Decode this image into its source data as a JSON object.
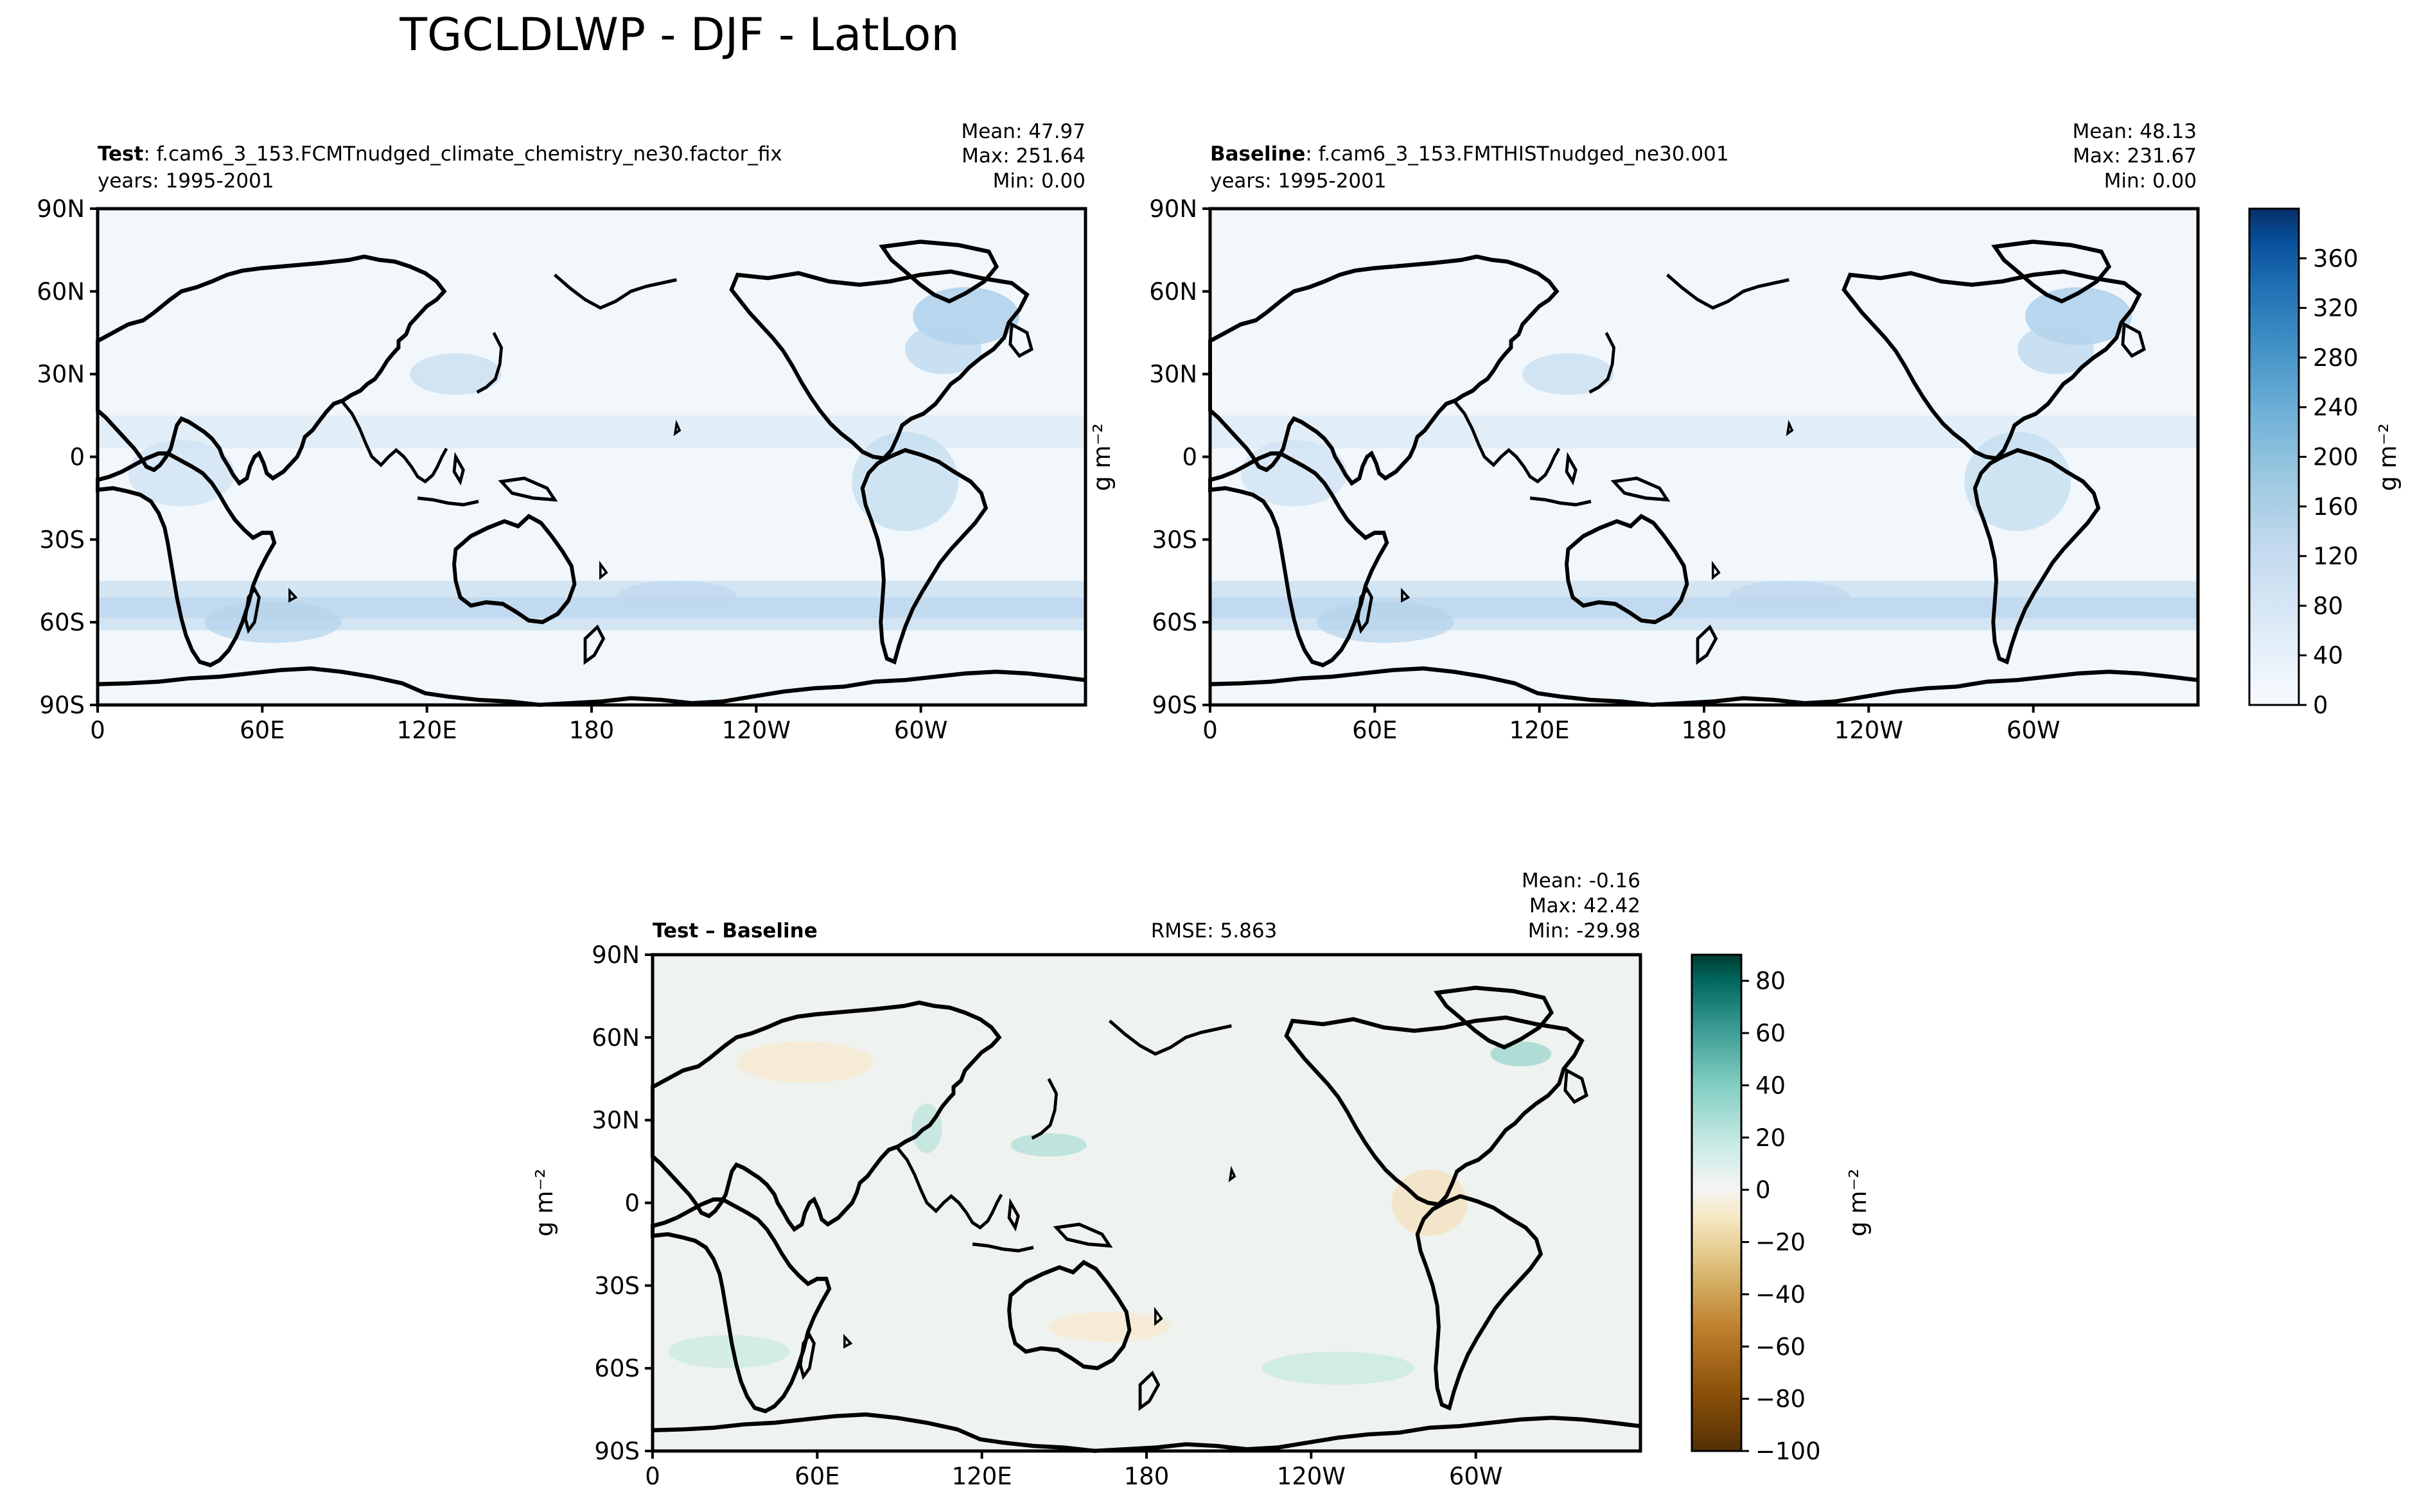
{
  "title": "TGCLDLWP - DJF - LatLon",
  "panels": {
    "test": {
      "name_bold": "Test",
      "name_rest": ": f.cam6_3_153.FCMTnudged_climate_chemistry_ne30.factor_fix",
      "years": "years: 1995-2001",
      "stats": [
        "Mean: 47.97",
        "Max: 251.64",
        "Min:  0.00"
      ]
    },
    "baseline": {
      "name_bold": "Baseline",
      "name_rest": ": f.cam6_3_153.FMTHISTnudged_ne30.001",
      "years": "years: 1995-2001",
      "stats": [
        "Mean: 48.13",
        "Max: 231.67",
        "Min:  0.00"
      ]
    },
    "diff": {
      "name_bold": "Test – Baseline",
      "rmse": "RMSE: 5.863",
      "stats": [
        "Mean: -0.16",
        "Max: 42.42",
        "Min: -29.98"
      ]
    }
  },
  "axes": {
    "lat_ticks": [
      "90N",
      "60N",
      "30N",
      "0",
      "30S",
      "60S",
      "90S"
    ],
    "lon_ticks": [
      "0",
      "60E",
      "120E",
      "180",
      "120W",
      "60W"
    ],
    "units_label": "g m⁻²"
  },
  "colorbars": {
    "field": {
      "ticks": [
        "0",
        "40",
        "80",
        "120",
        "160",
        "200",
        "240",
        "280",
        "320",
        "360"
      ],
      "levels": [
        0,
        400
      ],
      "colors": [
        "#f7fbff",
        "#deebf7",
        "#c6dbef",
        "#9ecae1",
        "#6baed6",
        "#4292c6",
        "#2171b5",
        "#08519c",
        "#08306b"
      ]
    },
    "diff": {
      "ticks": [
        "80",
        "60",
        "40",
        "20",
        "0",
        "−20",
        "−40",
        "−60",
        "−80",
        "−100"
      ],
      "levels": [
        -100,
        90
      ],
      "colors": [
        "#543005",
        "#8c510a",
        "#bf812d",
        "#dfc27d",
        "#f6e8c3",
        "#f5f5f5",
        "#c7eae5",
        "#80cdc1",
        "#35978f",
        "#01665e",
        "#003c30"
      ]
    }
  },
  "map_colors": {
    "field_background": "#f0f6fc",
    "field_band": "#c9dff0",
    "field_hot": "#9cc4e2",
    "diff_background": "#eef3ef",
    "diff_warm": "#f5ead4",
    "diff_cool": "#c4e6df",
    "coast": "#000000"
  }
}
